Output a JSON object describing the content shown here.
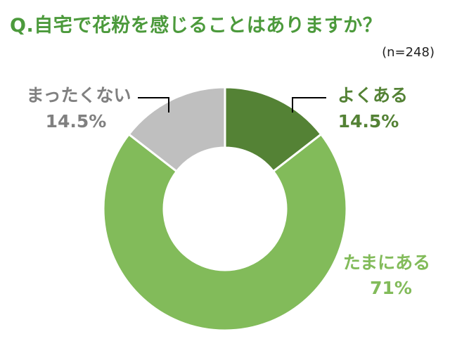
{
  "title": "Q.自宅で花粉を感じることはありますか？",
  "sample_note": "(n=248)",
  "colors": {
    "title": "#4c9a3c",
    "often": "#548235",
    "sometimes": "#82bb5a",
    "never": "#bfbfbf",
    "never_label": "#808080"
  },
  "chart_data": {
    "type": "pie",
    "donut": true,
    "categories": [
      "よくある",
      "たまにある",
      "まったくない"
    ],
    "values": [
      14.5,
      71,
      14.5
    ],
    "value_labels": [
      "14.5%",
      "71%",
      "14.5%"
    ],
    "sample_size": "n=248"
  }
}
